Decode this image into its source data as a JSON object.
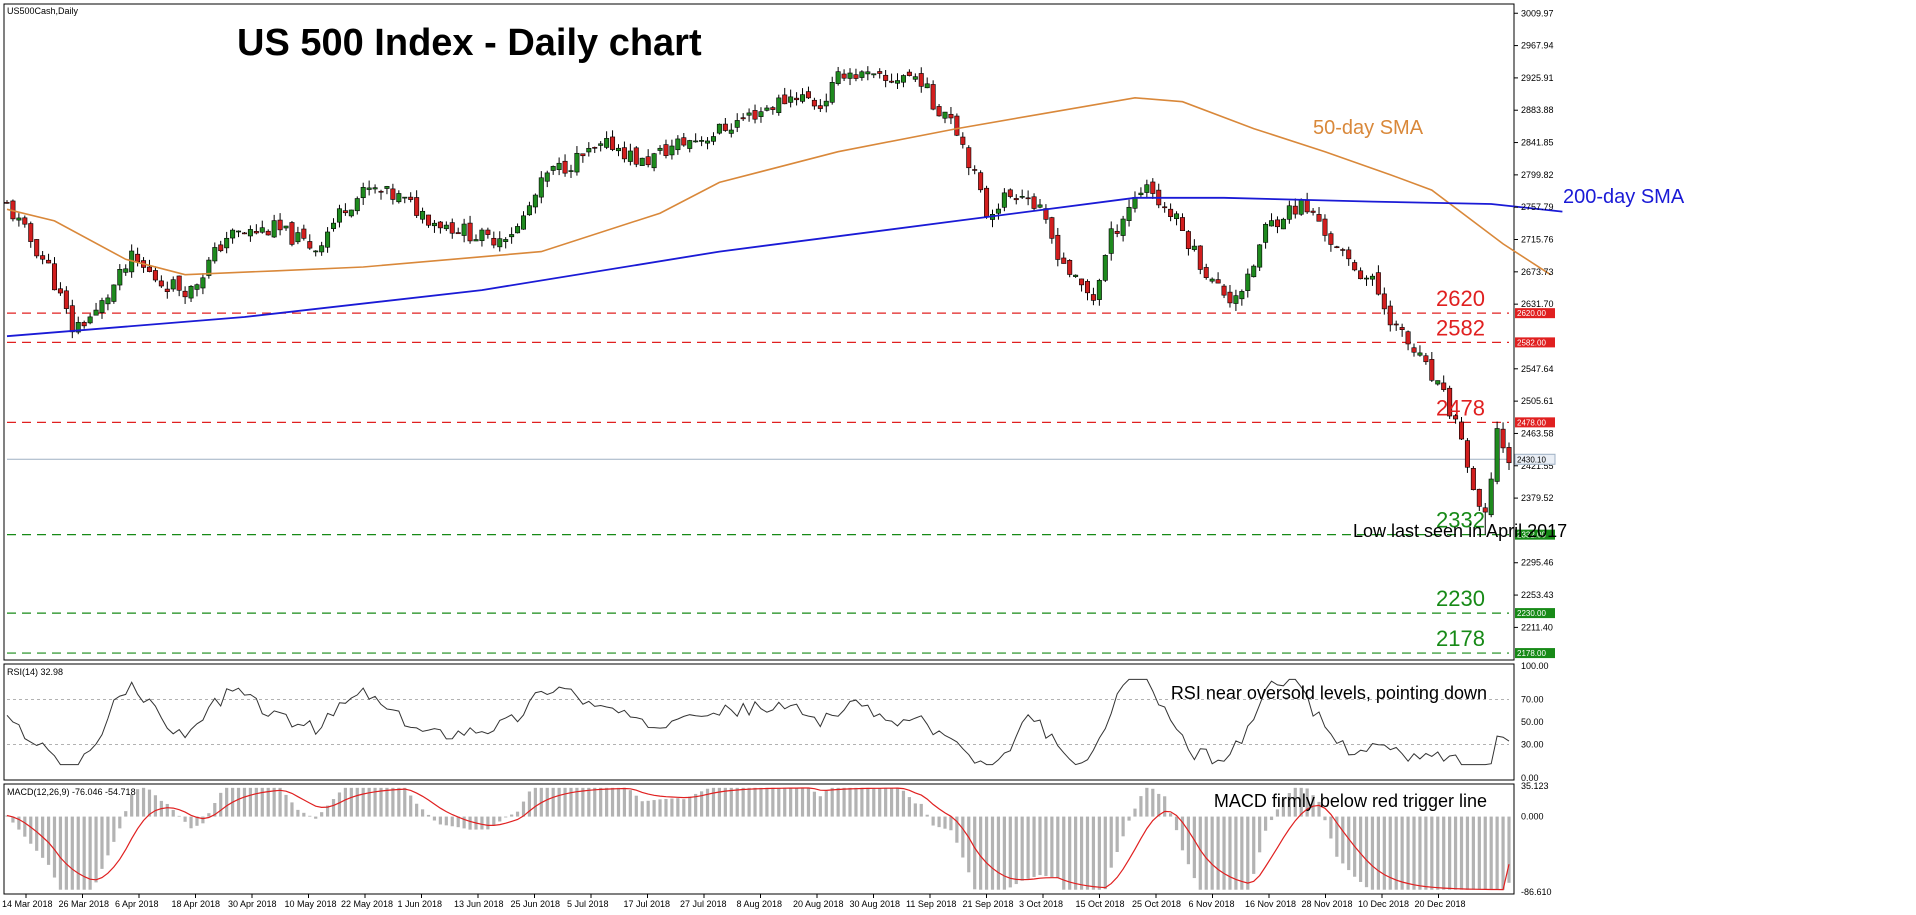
{
  "symbol_caption": "US500Cash,Daily",
  "title": "US 500 Index - Daily chart",
  "annotations": {
    "sma50": "50-day SMA",
    "sma200": "200-day SMA",
    "low_note": "Low last seen in April 2017",
    "rsi_note": "RSI near oversold levels, pointing down",
    "macd_note": "MACD firmly below red trigger line"
  },
  "colors": {
    "bull": "#1e8a1e",
    "bear": "#d21e1e",
    "sma50": "#d9883a",
    "sma200": "#1a1ad6",
    "resistance": "#e02020",
    "support": "#178a17",
    "rsi_line": "#333333",
    "macd_hist": "#b3b3b3",
    "macd_signal": "#e02020",
    "current": "#9fb0c4"
  },
  "price_axis": {
    "ticks": [
      "3009.97",
      "2967.94",
      "2925.91",
      "2883.88",
      "2841.85",
      "2799.82",
      "2757.79",
      "2715.76",
      "2673.73",
      "2631.70",
      "2547.64",
      "2505.61",
      "2463.58",
      "2421.55",
      "2379.52",
      "2295.46",
      "2253.43",
      "2211.40"
    ],
    "ylim": [
      2169,
      3022
    ]
  },
  "rsi": {
    "label": "RSI(14) 32.98",
    "ticks": [
      "100.00",
      "70.00",
      "50.00",
      "30.00",
      "0.00"
    ]
  },
  "macd": {
    "label": "MACD(12,26,9) -76.046 -54.718",
    "ticks": [
      "35.123",
      "0.000",
      "-86.610"
    ]
  },
  "date_labels": [
    "14 Mar 2018",
    "26 Mar 2018",
    "6 Apr 2018",
    "18 Apr 2018",
    "30 Apr 2018",
    "10 May 2018",
    "22 May 2018",
    "1 Jun 2018",
    "13 Jun 2018",
    "25 Jun 2018",
    "5 Jul 2018",
    "17 Jul 2018",
    "27 Jul 2018",
    "8 Aug 2018",
    "20 Aug 2018",
    "30 Aug 2018",
    "11 Sep 2018",
    "21 Sep 2018",
    "3 Oct 2018",
    "15 Oct 2018",
    "25 Oct 2018",
    "6 Nov 2018",
    "16 Nov 2018",
    "28 Nov 2018",
    "10 Dec 2018",
    "20 Dec 2018"
  ],
  "chart_data": {
    "type": "candlestick",
    "x_start": "14 Mar 2018",
    "x_end": "26 Dec 2018",
    "sessions": 201,
    "close_path": [
      [
        0,
        2760
      ],
      [
        7,
        2680
      ],
      [
        11,
        2600
      ],
      [
        15,
        2620
      ],
      [
        21,
        2690
      ],
      [
        26,
        2660
      ],
      [
        31,
        2650
      ],
      [
        37,
        2720
      ],
      [
        45,
        2730
      ],
      [
        52,
        2705
      ],
      [
        57,
        2760
      ],
      [
        61,
        2780
      ],
      [
        66,
        2770
      ],
      [
        72,
        2740
      ],
      [
        76,
        2730
      ],
      [
        81,
        2715
      ],
      [
        86,
        2730
      ],
      [
        91,
        2800
      ],
      [
        96,
        2820
      ],
      [
        102,
        2840
      ],
      [
        107,
        2815
      ],
      [
        113,
        2840
      ],
      [
        118,
        2850
      ],
      [
        126,
        2880
      ],
      [
        133,
        2905
      ],
      [
        137,
        2890
      ],
      [
        141,
        2935
      ],
      [
        148,
        2920
      ],
      [
        151,
        2930
      ],
      [
        154,
        2925
      ],
      [
        156,
        2890
      ],
      [
        159,
        2880
      ],
      [
        162,
        2820
      ],
      [
        165,
        2750
      ],
      [
        168,
        2770
      ],
      [
        171,
        2780
      ],
      [
        174,
        2750
      ],
      [
        177,
        2700
      ],
      [
        180,
        2660
      ],
      [
        183,
        2640
      ],
      [
        186,
        2720
      ],
      [
        189,
        2760
      ],
      [
        192,
        2790
      ],
      [
        194,
        2765
      ],
      [
        197,
        2740
      ],
      [
        200,
        2700
      ],
      [
        203,
        2660
      ],
      [
        206,
        2640
      ],
      [
        209,
        2660
      ],
      [
        212,
        2730
      ],
      [
        215,
        2750
      ],
      [
        218,
        2760
      ],
      [
        221,
        2740
      ],
      [
        224,
        2700
      ],
      [
        227,
        2680
      ],
      [
        230,
        2660
      ],
      [
        234,
        2600
      ],
      [
        238,
        2560
      ],
      [
        242,
        2510
      ],
      [
        245,
        2460
      ],
      [
        247,
        2380
      ],
      [
        249,
        2351
      ],
      [
        251,
        2468
      ],
      [
        253,
        2430
      ]
    ],
    "sma50_path": [
      [
        0,
        2755
      ],
      [
        8,
        2740
      ],
      [
        20,
        2690
      ],
      [
        30,
        2670
      ],
      [
        45,
        2675
      ],
      [
        60,
        2680
      ],
      [
        75,
        2690
      ],
      [
        90,
        2700
      ],
      [
        110,
        2750
      ],
      [
        120,
        2790
      ],
      [
        140,
        2830
      ],
      [
        160,
        2860
      ],
      [
        175,
        2880
      ],
      [
        190,
        2900
      ],
      [
        198,
        2895
      ],
      [
        210,
        2860
      ],
      [
        222,
        2830
      ],
      [
        233,
        2800
      ],
      [
        240,
        2780
      ],
      [
        252,
        2710
      ],
      [
        260,
        2670
      ]
    ],
    "sma200_path": [
      [
        0,
        2590
      ],
      [
        40,
        2615
      ],
      [
        80,
        2650
      ],
      [
        120,
        2700
      ],
      [
        160,
        2740
      ],
      [
        190,
        2770
      ],
      [
        205,
        2770
      ],
      [
        230,
        2765
      ],
      [
        250,
        2762
      ],
      [
        262,
        2752
      ]
    ],
    "levels": [
      {
        "value": 2620,
        "label": "2620",
        "tag": "2620.00",
        "kind": "resistance"
      },
      {
        "value": 2582,
        "label": "2582",
        "tag": "2582.00",
        "kind": "resistance"
      },
      {
        "value": 2478,
        "label": "2478",
        "tag": "2478.00",
        "kind": "resistance"
      },
      {
        "value": 2332,
        "label": "2332",
        "tag": "2332.00",
        "kind": "support"
      },
      {
        "value": 2230,
        "label": "2230",
        "tag": "2230.00",
        "kind": "support"
      },
      {
        "value": 2178,
        "label": "2178",
        "tag": "2178.00",
        "kind": "support"
      }
    ],
    "current_price": {
      "value": 2430,
      "tag": "2430.10"
    },
    "rsi_value": 32.98,
    "macd_values": {
      "macd": -76.046,
      "signal": -54.718
    }
  }
}
